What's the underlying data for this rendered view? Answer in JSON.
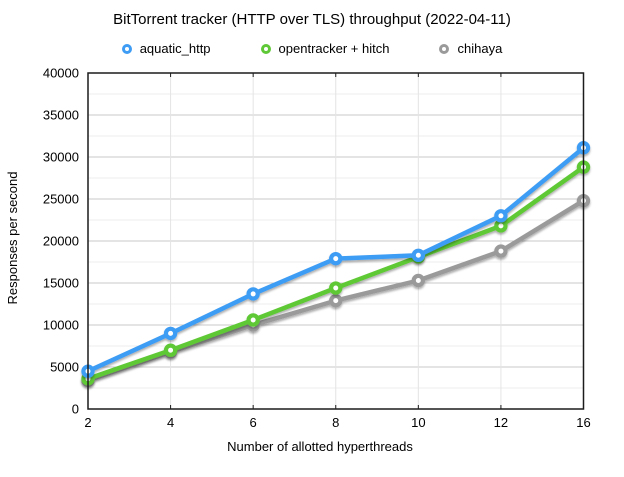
{
  "chart_data": {
    "type": "line",
    "title": "BitTorrent tracker (HTTP over TLS) throughput (2022-04-11)",
    "xlabel": "Number of allotted hyperthreads",
    "ylabel": "Responses per second",
    "categories": [
      2,
      4,
      6,
      8,
      10,
      12,
      16
    ],
    "x_tick_labels": [
      "2",
      "4",
      "6",
      "8",
      "10",
      "12",
      "16"
    ],
    "y_tick_labels": [
      "0",
      "5000",
      "10000",
      "15000",
      "20000",
      "25000",
      "30000",
      "35000",
      "40000"
    ],
    "ylim": [
      0,
      40000
    ],
    "y_major": 5000,
    "y_minor": 2500,
    "grid": true,
    "legend_position": "top",
    "x_spacing": "categorical",
    "series": [
      {
        "name": "aquatic_http",
        "color": "#3E9CF4",
        "values": [
          4500,
          9000,
          13700,
          17900,
          18300,
          23000,
          31100
        ]
      },
      {
        "name": "opentracker + hitch",
        "color": "#5EC836",
        "values": [
          3600,
          7000,
          10600,
          14400,
          18100,
          21800,
          28800
        ]
      },
      {
        "name": "chihaya",
        "color": "#9A9A9A",
        "values": [
          3400,
          6800,
          10000,
          12900,
          15300,
          18800,
          24800
        ]
      }
    ]
  },
  "style": {
    "frame_color": "#1c1c1c",
    "major_grid_color": "#c9c9c9",
    "minor_grid_color": "#ededed",
    "vertical_grid_color": "#e4e4e4"
  }
}
